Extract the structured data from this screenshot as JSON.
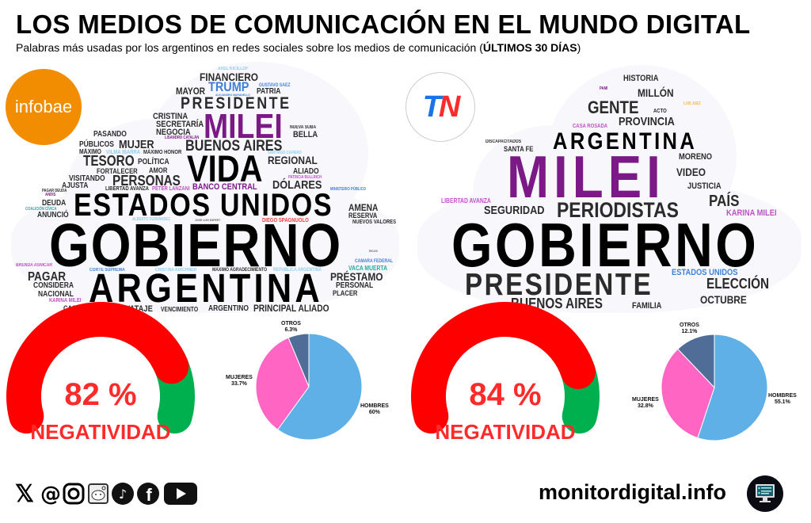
{
  "header": {
    "title": "LOS MEDIOS DE COMUNICACIÓN EN EL MUNDO DIGITAL",
    "subtitle": "Palabras más usadas por los argentinos en redes sociales sobre los medios de comunicación (",
    "subtitle_bold": "ÚLTIMOS 30 DÍAS",
    "subtitle_end": ")"
  },
  "infobae": {
    "logo": "infobae",
    "words": [
      "AXEL KICILLOF",
      "FINANCIERO",
      "MAYOR",
      "TRUMP",
      "GUSTAVO SÁEZ",
      "PATRIA",
      "ALEJANDRO MARANELLO",
      "PRESIDENTE",
      "CRISTINA",
      "SECRETARÍA",
      "NEGOCIA",
      "MILEI",
      "NUEVA SUBA",
      "BELLA",
      "LISANDRO CATALÁN",
      "PASANDO",
      "MUJER",
      "BUENOS AIRES",
      "PÚBLICOS",
      "MÁXIMO",
      "VILMA IBARRA",
      "MÁXIMO HONOR",
      "TESORO",
      "POLÍTICA",
      "VIDA",
      "SANTIAGO CAFIERO",
      "REGIONAL",
      "FORTALECER",
      "AMOR",
      "ALIADO",
      "PATRICIA BULLRICH",
      "VISITANDO",
      "PERSONAS",
      "AJUSTA",
      "PAGAR DEUDA",
      "LIBERTAD AVANZA",
      "PETER LANZANI",
      "BANCO CENTRAL",
      "DÓLARES",
      "MINISTERIO PÚBLICO",
      "ANDIS",
      "DEUDA",
      "ESTADOS UNIDOS",
      "COALICIÓN CÍVICA",
      "ANUNCIÓ",
      "AMENA",
      "RESERVA",
      "ALBERTO FERNÁNDEZ",
      "JOSÉ LUIS ESPERT",
      "DIEGO SPAGNUOLO",
      "NUEVOS VALORES",
      "GOBIERNO",
      "RICOS",
      "BRENDA ASNICAR",
      "CORTE SUPREMA",
      "CRISTINA KIRCHNER",
      "MÁXIMO AGRADECIMIENTO",
      "REPÚBLICA ARGENTINA",
      "CÁMARA FEDERAL",
      "VACA MUERTA",
      "PAGAR",
      "CONSIDERA",
      "ARGENTINA",
      "PRÉSTAMO",
      "PERSONAL",
      "NACIONAL",
      "PLACER",
      "KARINA MILEI",
      "CASA ROSADA",
      "SALVATAJE",
      "VENCIMIENTO",
      "ARGENTINO",
      "PRINCIPAL ALIADO"
    ]
  },
  "tn": {
    "logo_t": "T",
    "logo_n": "N",
    "words": [
      "HISTORIA",
      "PAMI",
      "MILLÓN",
      "GENTE",
      "LUIS JUEZ",
      "ACTO",
      "CASA ROSADA",
      "PROVINCIA",
      "DISCAPACITADOS",
      "SANTA FE",
      "ARGENTINA",
      "MILEI",
      "MORENO",
      "VIDEO",
      "JUSTICIA",
      "LIBERTAD AVANZA",
      "SEGURIDAD",
      "PERIODISTAS",
      "PAÍS",
      "KARINA MILEI",
      "GOBIERNO",
      "ESTADOS UNIDOS",
      "PRESIDENTE",
      "ELECCIÓN",
      "BUENOS AIRES",
      "FAMILIA",
      "OCTUBRE"
    ]
  },
  "chart_data": [
    {
      "type": "gauge",
      "source": "infobae",
      "value": 82,
      "value_label": "82 %",
      "label": "NEGATIVIDAD",
      "range": [
        0,
        100
      ],
      "colors": {
        "negative": "#ff0000",
        "rest": "#00b04f"
      }
    },
    {
      "type": "pie",
      "source": "infobae",
      "slices": [
        {
          "name": "HOMBRES",
          "value": 60,
          "label": "60%",
          "color": "#5fb0e6"
        },
        {
          "name": "MUJERES",
          "value": 33.7,
          "label": "33.7%",
          "color": "#ff66c4"
        },
        {
          "name": "OTROS",
          "value": 6.3,
          "label": "6.3%",
          "color": "#4f6d97"
        }
      ]
    },
    {
      "type": "gauge",
      "source": "tn",
      "value": 84,
      "value_label": "84 %",
      "label": "NEGATIVIDAD",
      "range": [
        0,
        100
      ],
      "colors": {
        "negative": "#ff0000",
        "rest": "#00b04f"
      }
    },
    {
      "type": "pie",
      "source": "tn",
      "slices": [
        {
          "name": "HOMBRES",
          "value": 55.1,
          "label": "55.1%",
          "color": "#5fb0e6"
        },
        {
          "name": "MUJERES",
          "value": 32.8,
          "label": "32.8%",
          "color": "#ff66c4"
        },
        {
          "name": "OTROS",
          "value": 12.1,
          "label": "12.1%",
          "color": "#4f6d97"
        }
      ]
    }
  ],
  "footer": {
    "brand": "monitordigital.info",
    "social_icons": [
      "x-icon",
      "threads-icon",
      "instagram-icon",
      "reddit-icon",
      "tiktok-icon",
      "facebook-icon",
      "youtube-icon"
    ]
  }
}
